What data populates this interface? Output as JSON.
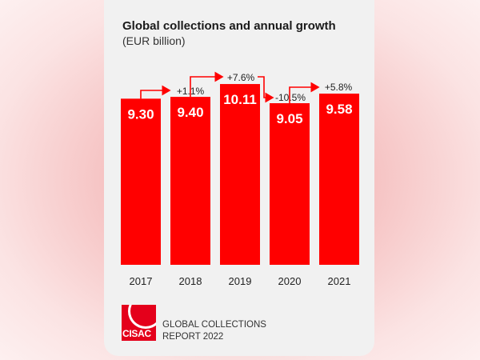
{
  "chart_data": {
    "type": "bar",
    "title": "Global collections and annual growth",
    "unit": "(EUR billion)",
    "categories": [
      "2017",
      "2018",
      "2019",
      "2020",
      "2021"
    ],
    "values": [
      9.3,
      9.4,
      10.11,
      9.05,
      9.58
    ],
    "value_labels": [
      "9.30",
      "9.40",
      "10.11",
      "9.05",
      "9.58"
    ],
    "growth_labels": [
      "+1.1%",
      "+7.6%",
      "-10.5%",
      "+5.8%"
    ],
    "bar_color": "#ff0000",
    "grid": false
  },
  "footer": {
    "logo_text": "CISAC",
    "report_line1": "GLOBAL COLLECTIONS",
    "report_line2": "REPORT 2022",
    "logo_color": "#e4001b"
  }
}
